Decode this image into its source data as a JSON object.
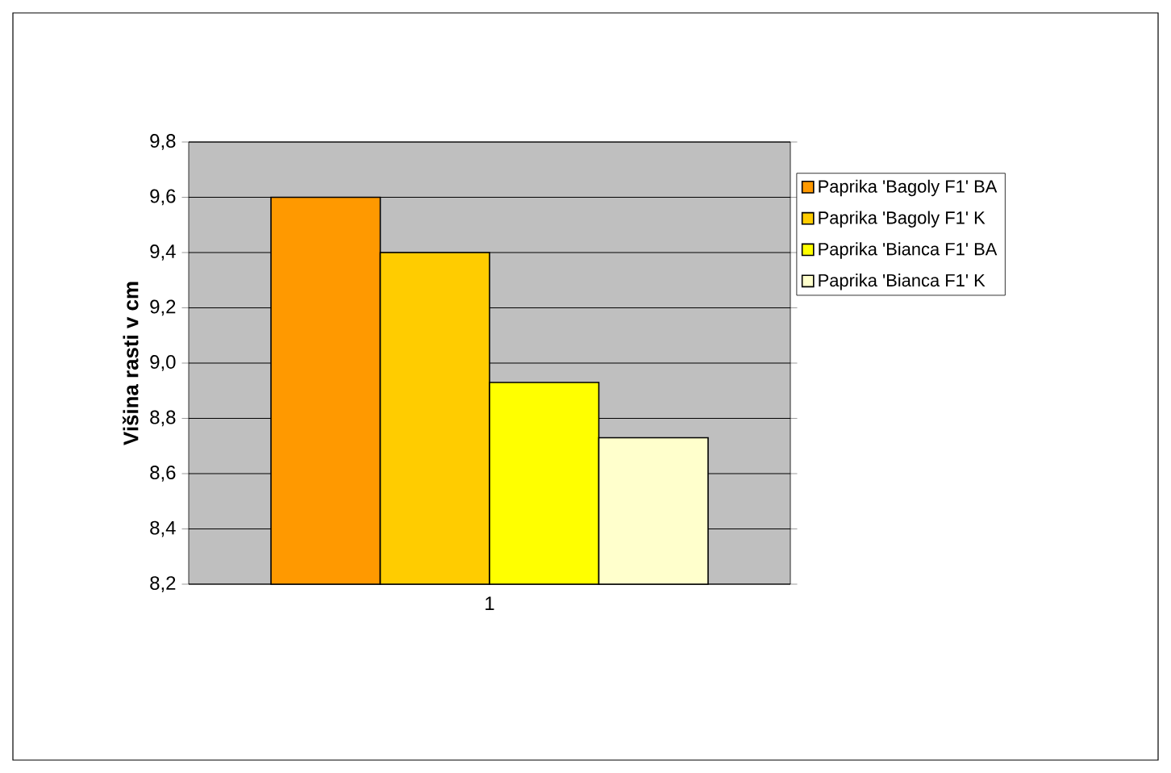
{
  "chart_data": {
    "type": "bar",
    "ylabel": "Višina rasti v cm",
    "categories": [
      "1"
    ],
    "series": [
      {
        "name": "Paprika  'Bagoly F1' BA",
        "color": "#ff9900",
        "values": [
          9.6
        ]
      },
      {
        "name": "Paprika  'Bagoly F1' K",
        "color": "#ffcc00",
        "values": [
          9.4
        ]
      },
      {
        "name": "Paprika  'Bianca F1' BA",
        "color": "#ffff00",
        "values": [
          8.93
        ]
      },
      {
        "name": "Paprika  'Bianca F1' K",
        "color": "#ffffcc",
        "values": [
          8.73
        ]
      }
    ],
    "ylim": [
      8.2,
      9.8
    ],
    "yticks": [
      {
        "value": 8.2,
        "label": "8,2"
      },
      {
        "value": 8.4,
        "label": "8,4"
      },
      {
        "value": 8.6,
        "label": "8,6"
      },
      {
        "value": 8.8,
        "label": "8,8"
      },
      {
        "value": 9.0,
        "label": "9,0"
      },
      {
        "value": 9.2,
        "label": "9,2"
      },
      {
        "value": 9.4,
        "label": "9,4"
      },
      {
        "value": 9.6,
        "label": "9,6"
      },
      {
        "value": 9.8,
        "label": "9,8"
      }
    ],
    "grid": "y",
    "legend": "right"
  }
}
